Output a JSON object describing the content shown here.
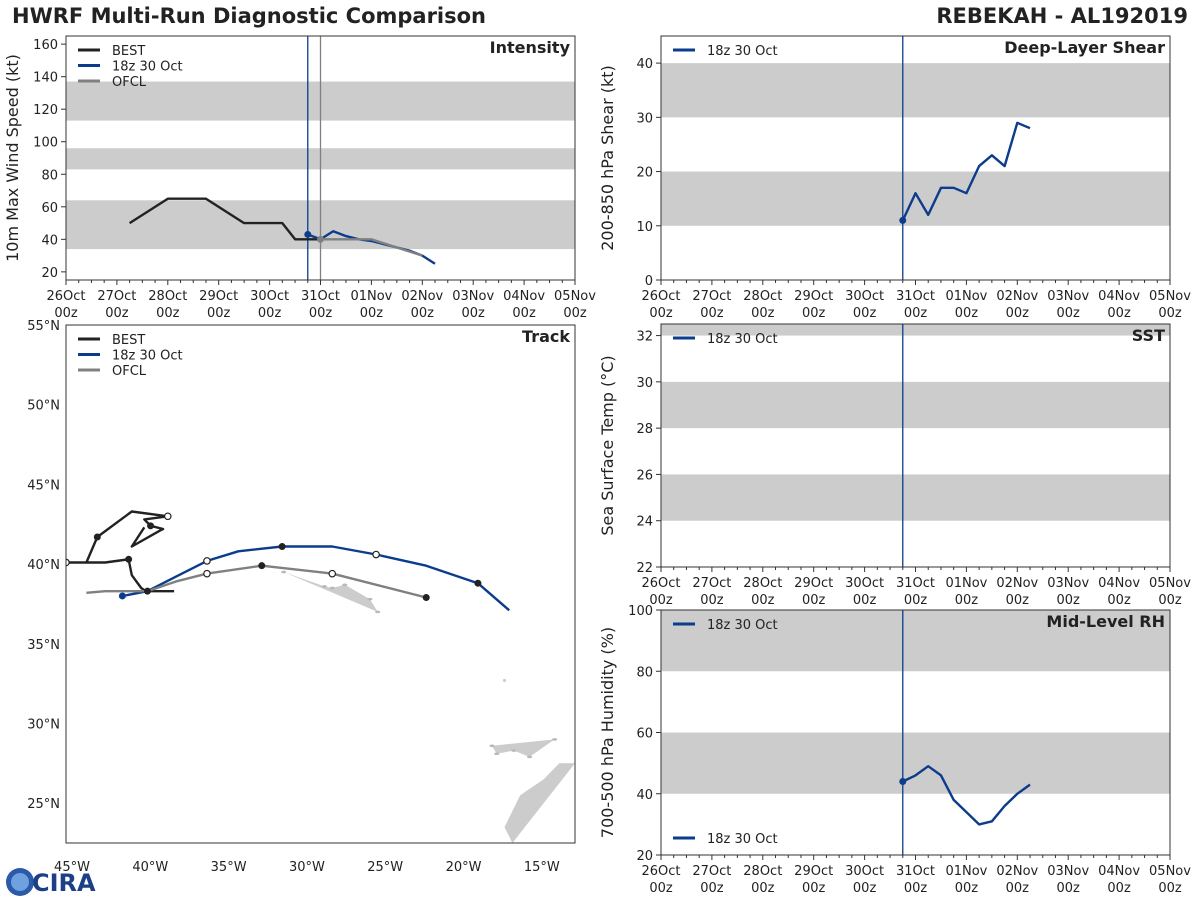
{
  "header": {
    "title_left": "HWRF Multi-Run Diagnostic Comparison",
    "title_right": "REBEKAH - AL192019"
  },
  "logo": {
    "text": "CIRA"
  },
  "colors": {
    "best": "#222222",
    "run": "#0b3d8c",
    "ofcl": "#808080",
    "band": "#cccccc",
    "land": "#cccccc"
  },
  "time_axis": {
    "dates": [
      "26Oct",
      "27Oct",
      "28Oct",
      "29Oct",
      "30Oct",
      "31Oct",
      "01Nov",
      "02Nov",
      "03Nov",
      "04Nov",
      "05Nov"
    ],
    "hour_label": "00z"
  },
  "chart_data": [
    {
      "id": "intensity",
      "type": "line",
      "title": "Intensity",
      "ylabel": "10m Max Wind Speed (kt)",
      "xlabel": "",
      "xlim_days": [
        0,
        10
      ],
      "ylim": [
        15,
        165
      ],
      "yticks": [
        20,
        40,
        60,
        80,
        100,
        120,
        140,
        160
      ],
      "bands": [
        [
          34,
          64
        ],
        [
          83,
          96
        ],
        [
          113,
          137
        ]
      ],
      "init_day": 4.75,
      "ofcl_day": 5.0,
      "legend": [
        "BEST",
        "18z 30 Oct",
        "OFCL"
      ],
      "series": [
        {
          "name": "BEST",
          "color": "#222222",
          "x": [
            1.25,
            2.0,
            2.75,
            3.5,
            4.25,
            4.5,
            5.0
          ],
          "y": [
            50,
            65,
            65,
            50,
            50,
            40,
            40
          ]
        },
        {
          "name": "18z 30 Oct",
          "color": "#0b3d8c",
          "marker_first": true,
          "x": [
            4.75,
            5.0,
            5.25,
            5.5,
            5.75,
            6.0,
            6.25,
            6.5,
            6.75,
            7.0,
            7.25
          ],
          "y": [
            43,
            40,
            45,
            42,
            40,
            39,
            37,
            35,
            33,
            30,
            25
          ]
        },
        {
          "name": "OFCL",
          "color": "#808080",
          "marker_first": true,
          "x": [
            5.0,
            5.5,
            6.0,
            6.5,
            7.0
          ],
          "y": [
            40,
            40,
            40,
            35,
            30
          ]
        }
      ]
    },
    {
      "id": "shear",
      "type": "line",
      "title": "Deep-Layer Shear",
      "ylabel": "200-850 hPa Shear (kt)",
      "xlabel": "",
      "xlim_days": [
        0,
        10
      ],
      "ylim": [
        0,
        45
      ],
      "yticks": [
        0,
        10,
        20,
        30,
        40
      ],
      "bands": [
        [
          10,
          20
        ],
        [
          30,
          40
        ]
      ],
      "init_day": 4.75,
      "legend": [
        "18z 30 Oct"
      ],
      "series": [
        {
          "name": "18z 30 Oct",
          "color": "#0b3d8c",
          "marker_first": true,
          "x": [
            4.75,
            5.0,
            5.25,
            5.5,
            5.75,
            6.0,
            6.25,
            6.5,
            6.75,
            7.0,
            7.25
          ],
          "y": [
            11,
            16,
            12,
            17,
            17,
            16,
            21,
            23,
            21,
            29,
            28
          ]
        }
      ]
    },
    {
      "id": "sst",
      "type": "line",
      "title": "SST",
      "ylabel": "Sea Surface Temp (°C)",
      "xlabel": "",
      "xlim_days": [
        0,
        10
      ],
      "ylim": [
        22,
        32.5
      ],
      "yticks": [
        22,
        24,
        26,
        28,
        30,
        32
      ],
      "bands": [
        [
          24,
          26
        ],
        [
          28,
          30
        ],
        [
          32,
          32.5
        ]
      ],
      "init_day": 4.75,
      "legend": [
        "18z 30 Oct"
      ],
      "series": []
    },
    {
      "id": "rh",
      "type": "line",
      "title": "Mid-Level RH",
      "ylabel": "700-500 hPa Humidity (%)",
      "xlabel": "",
      "xlim_days": [
        0,
        10
      ],
      "ylim": [
        20,
        100
      ],
      "yticks": [
        20,
        40,
        60,
        80,
        100
      ],
      "bands": [
        [
          40,
          60
        ],
        [
          80,
          100
        ]
      ],
      "init_day": 4.75,
      "legend": [
        "18z 30 Oct"
      ],
      "series": [
        {
          "name": "18z 30 Oct",
          "color": "#0b3d8c",
          "marker_first": true,
          "x": [
            4.75,
            5.0,
            5.25,
            5.5,
            5.75,
            6.0,
            6.25,
            6.5,
            6.75,
            7.0,
            7.25
          ],
          "y": [
            44,
            46,
            49,
            46,
            38,
            34,
            30,
            31,
            36,
            40,
            43
          ]
        }
      ]
    },
    {
      "id": "track",
      "type": "line",
      "title": "Track",
      "xlabel": "Longitude",
      "ylabel": "Latitude",
      "xlim": [
        -45,
        -12.5
      ],
      "ylim": [
        22.5,
        55
      ],
      "xticks": [
        -45,
        -40,
        -35,
        -30,
        -25,
        -20,
        -15
      ],
      "xticklabels": [
        "45°W",
        "40°W",
        "35°W",
        "30°W",
        "25°W",
        "20°W",
        "15°W"
      ],
      "yticks": [
        25,
        30,
        35,
        40,
        45,
        50,
        55
      ],
      "yticklabels": [
        "25°N",
        "30°N",
        "35°N",
        "40°N",
        "45°N",
        "50°N",
        "55°N"
      ],
      "legend": [
        "BEST",
        "18z 30 Oct",
        "OFCL"
      ],
      "series": [
        {
          "name": "BEST",
          "color": "#222222",
          "lon": [
            -40.0,
            -40.8,
            -39.0,
            -38.8,
            -39.6,
            -40.0,
            -38.5,
            -40.8,
            -43.0,
            -43.7,
            -45.0,
            -42.5,
            -41.0,
            -40.8,
            -40.2,
            -39.9,
            -38.1
          ],
          "lat": [
            42.3,
            41.1,
            42.1,
            42.2,
            42.4,
            42.8,
            43.0,
            43.3,
            41.7,
            40.1,
            40.1,
            40.1,
            40.3,
            39.3,
            38.5,
            38.3,
            38.3
          ],
          "filled": [
            0,
            0,
            0,
            0,
            1,
            0,
            0,
            0,
            1,
            0,
            0,
            0,
            1,
            0,
            0,
            0,
            0
          ],
          "open": [
            0,
            0,
            0,
            0,
            0,
            0,
            1,
            0,
            0,
            0,
            1,
            0,
            0,
            0,
            0,
            0,
            0
          ]
        },
        {
          "name": "18z 30 Oct",
          "color": "#0b3d8c",
          "lon": [
            -41.4,
            -39.8,
            -38.0,
            -36.0,
            -34.0,
            -31.2,
            -28.0,
            -25.2,
            -22.0,
            -18.7,
            -16.7
          ],
          "lat": [
            38.0,
            38.3,
            39.2,
            40.2,
            40.8,
            41.1,
            41.1,
            40.6,
            39.9,
            38.8,
            37.1
          ],
          "filled": [
            1,
            0,
            0,
            0,
            0,
            1,
            0,
            0,
            0,
            1,
            0
          ],
          "open": [
            0,
            0,
            0,
            1,
            0,
            0,
            0,
            1,
            0,
            0,
            0
          ]
        },
        {
          "name": "OFCL",
          "color": "#808080",
          "lon": [
            -43.7,
            -42.5,
            -39.8,
            -38.0,
            -36.0,
            -32.5,
            -28.0,
            -22.0
          ],
          "lat": [
            38.2,
            38.3,
            38.3,
            38.9,
            39.4,
            39.9,
            39.4,
            37.9
          ],
          "filled": [
            0,
            0,
            1,
            0,
            0,
            1,
            0,
            1
          ],
          "open": [
            0,
            0,
            0,
            0,
            1,
            0,
            1,
            0
          ]
        }
      ],
      "land": [
        {
          "name": "africa-coast",
          "lon": [
            -12.5,
            -12.5,
            -16.5,
            -17.0,
            -16.0,
            -14.5,
            -13.5,
            -12.5
          ],
          "lat": [
            22.5,
            27.5,
            22.5,
            23.5,
            25.5,
            26.5,
            27.5,
            27.5
          ]
        },
        {
          "name": "canaries",
          "lon": [
            -17.8,
            -17.5,
            -16.4,
            -15.4,
            -13.8
          ],
          "lat": [
            28.6,
            28.1,
            28.3,
            27.9,
            29.0
          ]
        },
        {
          "name": "madeira",
          "lon": [
            -17.0
          ],
          "lat": [
            32.7
          ]
        },
        {
          "name": "azores",
          "lon": [
            -31.1,
            -28.5,
            -28.0,
            -27.2,
            -25.6,
            -25.1
          ],
          "lat": [
            39.5,
            38.6,
            38.5,
            38.7,
            37.8,
            37.0
          ]
        }
      ]
    }
  ]
}
